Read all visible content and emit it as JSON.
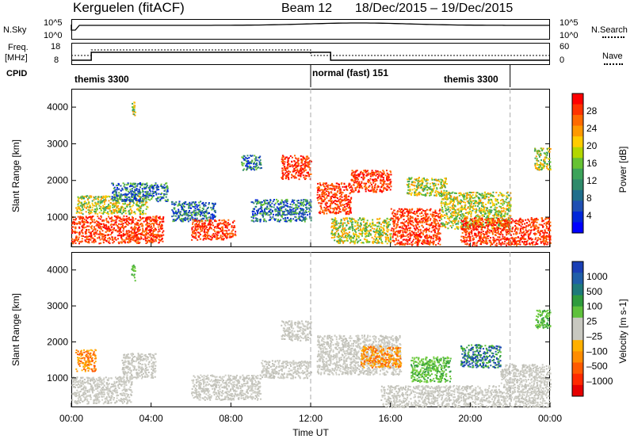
{
  "header": {
    "station": "Kerguelen (fitACF)",
    "beam": "Beam 12",
    "dates": "18/Dec/2015 – 19/Dec/2015"
  },
  "noise_panel": {
    "left_label": "N.Sky",
    "left_ticks": [
      "10^5",
      "10^0"
    ],
    "right_ticks": [
      "10^5",
      "10^0"
    ],
    "right_label": "N.Search"
  },
  "freq_panel": {
    "left_label_1": "Freq.",
    "left_label_2": "[MHz]",
    "left_ticks": [
      "18",
      "8"
    ],
    "right_ticks": [
      "60",
      "0"
    ],
    "right_label": "Nave"
  },
  "cpid": {
    "label": "CPID",
    "segments": [
      "themis 3300",
      "normal (fast) 151",
      "themis 3300"
    ]
  },
  "power_panel": {
    "ylabel": "Slant Range [km]",
    "cbar_label": "Power [dB]",
    "cbar_ticks": [
      "28",
      "24",
      "20",
      "16",
      "12",
      "8",
      "4"
    ],
    "cbar_colors": [
      "#ff0000",
      "#ff3300",
      "#ff6a00",
      "#ff9900",
      "#ffcc00",
      "#b3d600",
      "#66c233",
      "#3ca35a",
      "#2f8a6b",
      "#1f6e8c",
      "#1f4fb3",
      "#0026d9",
      "#0000ff"
    ]
  },
  "velocity_panel": {
    "ylabel": "Slant Range [km]",
    "cbar_label": "Velocity [m s-1]",
    "cbar_ticks": [
      "1000",
      "500",
      "100",
      "25",
      "–25",
      "–100",
      "–500",
      "–1000"
    ],
    "cbar_colors": [
      "#1a3fb5",
      "#1f5fa8",
      "#1e7a7a",
      "#2f9b3d",
      "#5fc13c",
      "#c8c8c0",
      "#c8c8c0",
      "#ffb000",
      "#ff8c00",
      "#ff5a00",
      "#ff2a00",
      "#e60000"
    ]
  },
  "x_axis": {
    "ticks": [
      "00:00",
      "04:00",
      "08:00",
      "12:00",
      "16:00",
      "20:00",
      "00:00"
    ],
    "label": "Time UT"
  },
  "chart_data": {
    "type": "heatmap",
    "x_range_hours": [
      0,
      24
    ],
    "y_range_km": [
      180,
      4500
    ],
    "y_ticks_km": [
      1000,
      2000,
      3000,
      4000
    ],
    "power_cbar_range_db": [
      0,
      30
    ],
    "velocity_cbar_range_ms": [
      -1000,
      1000
    ],
    "cpid_changes_hours": [
      12,
      22
    ],
    "power_regions": [
      {
        "t0": 0.0,
        "t1": 4.6,
        "r0": 300,
        "r1": 1050,
        "level": "high"
      },
      {
        "t0": 0.2,
        "t1": 3.8,
        "r0": 1100,
        "r1": 1600,
        "level": "mid"
      },
      {
        "t0": 2.0,
        "t1": 4.8,
        "r0": 1450,
        "r1": 1950,
        "level": "low"
      },
      {
        "t0": 3.0,
        "t1": 3.2,
        "r0": 3700,
        "r1": 4150,
        "level": "mid"
      },
      {
        "t0": 5.0,
        "t1": 7.2,
        "r0": 900,
        "r1": 1450,
        "level": "low"
      },
      {
        "t0": 6.0,
        "t1": 8.2,
        "r0": 400,
        "r1": 950,
        "level": "high"
      },
      {
        "t0": 8.5,
        "t1": 9.5,
        "r0": 2300,
        "r1": 2700,
        "level": "low"
      },
      {
        "t0": 9.0,
        "t1": 12.0,
        "r0": 900,
        "r1": 1500,
        "level": "low"
      },
      {
        "t0": 10.5,
        "t1": 12.0,
        "r0": 2050,
        "r1": 2700,
        "level": "high"
      },
      {
        "t0": 12.3,
        "t1": 14.0,
        "r0": 1100,
        "r1": 1950,
        "level": "high"
      },
      {
        "t0": 13.0,
        "t1": 16.0,
        "r0": 300,
        "r1": 1000,
        "level": "mid"
      },
      {
        "t0": 14.0,
        "t1": 16.0,
        "r0": 1700,
        "r1": 2300,
        "level": "high"
      },
      {
        "t0": 16.0,
        "t1": 18.5,
        "r0": 250,
        "r1": 1250,
        "level": "high"
      },
      {
        "t0": 16.8,
        "t1": 18.8,
        "r0": 1600,
        "r1": 2100,
        "level": "mid"
      },
      {
        "t0": 18.5,
        "t1": 22.0,
        "r0": 700,
        "r1": 1700,
        "level": "mid"
      },
      {
        "t0": 19.5,
        "t1": 24.0,
        "r0": 250,
        "r1": 1000,
        "level": "high"
      },
      {
        "t0": 23.2,
        "t1": 24.0,
        "r0": 2300,
        "r1": 2900,
        "level": "mid"
      }
    ],
    "velocity_regions": [
      {
        "t0": 0.0,
        "t1": 3.0,
        "r0": 300,
        "r1": 1050,
        "level": "gs"
      },
      {
        "t0": 0.2,
        "t1": 1.2,
        "r0": 1200,
        "r1": 1800,
        "level": "neg"
      },
      {
        "t0": 2.5,
        "t1": 4.2,
        "r0": 1000,
        "r1": 1700,
        "level": "gs"
      },
      {
        "t0": 3.0,
        "t1": 3.2,
        "r0": 3700,
        "r1": 4150,
        "level": "pos"
      },
      {
        "t0": 6.0,
        "t1": 9.5,
        "r0": 400,
        "r1": 1100,
        "level": "gs"
      },
      {
        "t0": 9.5,
        "t1": 12.0,
        "r0": 1000,
        "r1": 1500,
        "level": "gs"
      },
      {
        "t0": 10.5,
        "t1": 12.0,
        "r0": 2050,
        "r1": 2600,
        "level": "gs"
      },
      {
        "t0": 12.3,
        "t1": 16.5,
        "r0": 1100,
        "r1": 2200,
        "level": "gs"
      },
      {
        "t0": 14.5,
        "t1": 16.5,
        "r0": 1300,
        "r1": 1900,
        "level": "neg"
      },
      {
        "t0": 15.5,
        "t1": 24.0,
        "r0": 200,
        "r1": 800,
        "level": "gs"
      },
      {
        "t0": 17.0,
        "t1": 19.0,
        "r0": 900,
        "r1": 1600,
        "level": "pos"
      },
      {
        "t0": 19.5,
        "t1": 21.5,
        "r0": 1300,
        "r1": 1950,
        "level": "pos2"
      },
      {
        "t0": 21.5,
        "t1": 24.0,
        "r0": 800,
        "r1": 1400,
        "level": "gs"
      },
      {
        "t0": 23.2,
        "t1": 24.0,
        "r0": 2400,
        "r1": 2900,
        "level": "pos"
      }
    ]
  }
}
